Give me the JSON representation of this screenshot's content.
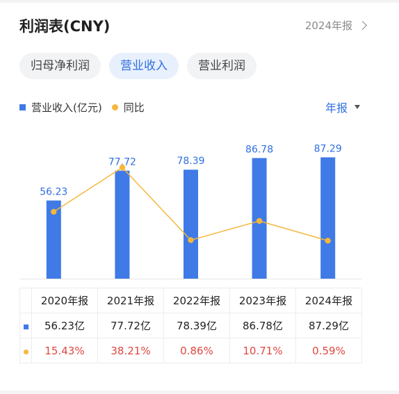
{
  "header": {
    "title": "利润表(CNY)",
    "report_link": "2024年报"
  },
  "tabs": [
    {
      "label": "归母净利润",
      "active": false
    },
    {
      "label": "营业收入",
      "active": true
    },
    {
      "label": "营业利润",
      "active": false
    }
  ],
  "legend": {
    "bar_label": "营业收入(亿元)",
    "line_label": "同比"
  },
  "period_selector": "年报",
  "colors": {
    "bar": "#3f7ae6",
    "line": "#f5b73d",
    "accent": "#2f6fe0",
    "negative_text": "#e0463f"
  },
  "chart_data": {
    "type": "bar",
    "categories": [
      "2020年报",
      "2021年报",
      "2022年报",
      "2023年报",
      "2024年报"
    ],
    "series": [
      {
        "name": "营业收入(亿元)",
        "type": "bar",
        "values": [
          56.23,
          77.72,
          78.39,
          86.78,
          87.29
        ],
        "labels": [
          "56.23",
          "77.72",
          "78.39",
          "86.78",
          "87.29"
        ]
      },
      {
        "name": "同比",
        "type": "line",
        "values": [
          15.43,
          38.21,
          0.86,
          10.71,
          0.59
        ]
      }
    ],
    "grid": false,
    "legend_position": "top-left"
  },
  "table": {
    "headers": [
      "2020年报",
      "2021年报",
      "2022年报",
      "2023年报",
      "2024年报"
    ],
    "revenue_row": [
      "56.23亿",
      "77.72亿",
      "78.39亿",
      "86.78亿",
      "87.29亿"
    ],
    "yoy_row": [
      "15.43%",
      "38.21%",
      "0.86%",
      "10.71%",
      "0.59%"
    ]
  }
}
